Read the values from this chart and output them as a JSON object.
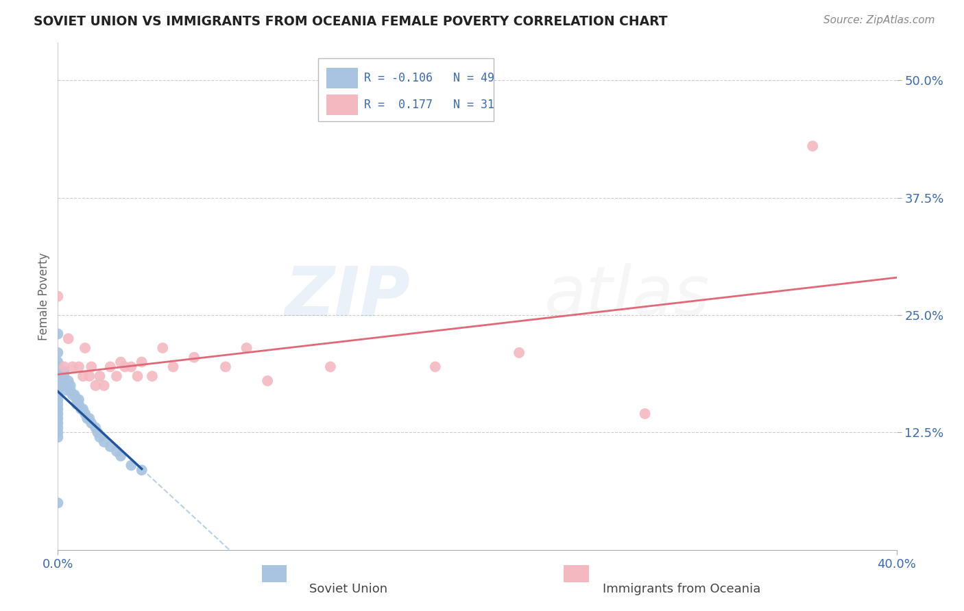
{
  "title": "SOVIET UNION VS IMMIGRANTS FROM OCEANIA FEMALE POVERTY CORRELATION CHART",
  "source": "Source: ZipAtlas.com",
  "xlabel_soviet": "Soviet Union",
  "xlabel_oceania": "Immigrants from Oceania",
  "ylabel": "Female Poverty",
  "xlim": [
    0.0,
    0.4
  ],
  "ylim": [
    0.0,
    0.54
  ],
  "ytick_positions": [
    0.125,
    0.25,
    0.375,
    0.5
  ],
  "ytick_labels": [
    "12.5%",
    "25.0%",
    "37.5%",
    "50.0%"
  ],
  "r_soviet": -0.106,
  "n_soviet": 49,
  "r_oceania": 0.177,
  "n_oceania": 31,
  "soviet_color": "#a8c4e0",
  "oceania_color": "#f4b8c1",
  "soviet_line_color": "#2255a0",
  "oceania_line_color": "#e06878",
  "dashed_line_color": "#a8c4e0",
  "soviet_scatter_x": [
    0.0,
    0.0,
    0.0,
    0.0,
    0.0,
    0.0,
    0.0,
    0.0,
    0.0,
    0.0,
    0.0,
    0.0,
    0.0,
    0.0,
    0.0,
    0.0,
    0.0,
    0.0,
    0.0,
    0.0,
    0.003,
    0.003,
    0.003,
    0.004,
    0.005,
    0.005,
    0.006,
    0.006,
    0.007,
    0.008,
    0.009,
    0.009,
    0.01,
    0.01,
    0.011,
    0.012,
    0.013,
    0.014,
    0.015,
    0.016,
    0.018,
    0.019,
    0.02,
    0.022,
    0.025,
    0.028,
    0.03,
    0.035,
    0.04
  ],
  "soviet_scatter_y": [
    0.23,
    0.21,
    0.2,
    0.195,
    0.19,
    0.185,
    0.18,
    0.175,
    0.17,
    0.165,
    0.16,
    0.155,
    0.15,
    0.145,
    0.14,
    0.135,
    0.13,
    0.125,
    0.12,
    0.05,
    0.19,
    0.185,
    0.175,
    0.17,
    0.18,
    0.175,
    0.175,
    0.17,
    0.165,
    0.165,
    0.16,
    0.155,
    0.16,
    0.155,
    0.15,
    0.15,
    0.145,
    0.14,
    0.14,
    0.135,
    0.13,
    0.125,
    0.12,
    0.115,
    0.11,
    0.105,
    0.1,
    0.09,
    0.085
  ],
  "oceania_scatter_x": [
    0.0,
    0.003,
    0.005,
    0.007,
    0.01,
    0.012,
    0.013,
    0.015,
    0.016,
    0.018,
    0.02,
    0.022,
    0.025,
    0.028,
    0.03,
    0.032,
    0.035,
    0.038,
    0.04,
    0.045,
    0.05,
    0.055,
    0.065,
    0.08,
    0.09,
    0.1,
    0.13,
    0.18,
    0.22,
    0.28,
    0.36
  ],
  "oceania_scatter_y": [
    0.27,
    0.195,
    0.225,
    0.195,
    0.195,
    0.185,
    0.215,
    0.185,
    0.195,
    0.175,
    0.185,
    0.175,
    0.195,
    0.185,
    0.2,
    0.195,
    0.195,
    0.185,
    0.2,
    0.185,
    0.215,
    0.195,
    0.205,
    0.195,
    0.215,
    0.18,
    0.195,
    0.195,
    0.21,
    0.145,
    0.43
  ]
}
